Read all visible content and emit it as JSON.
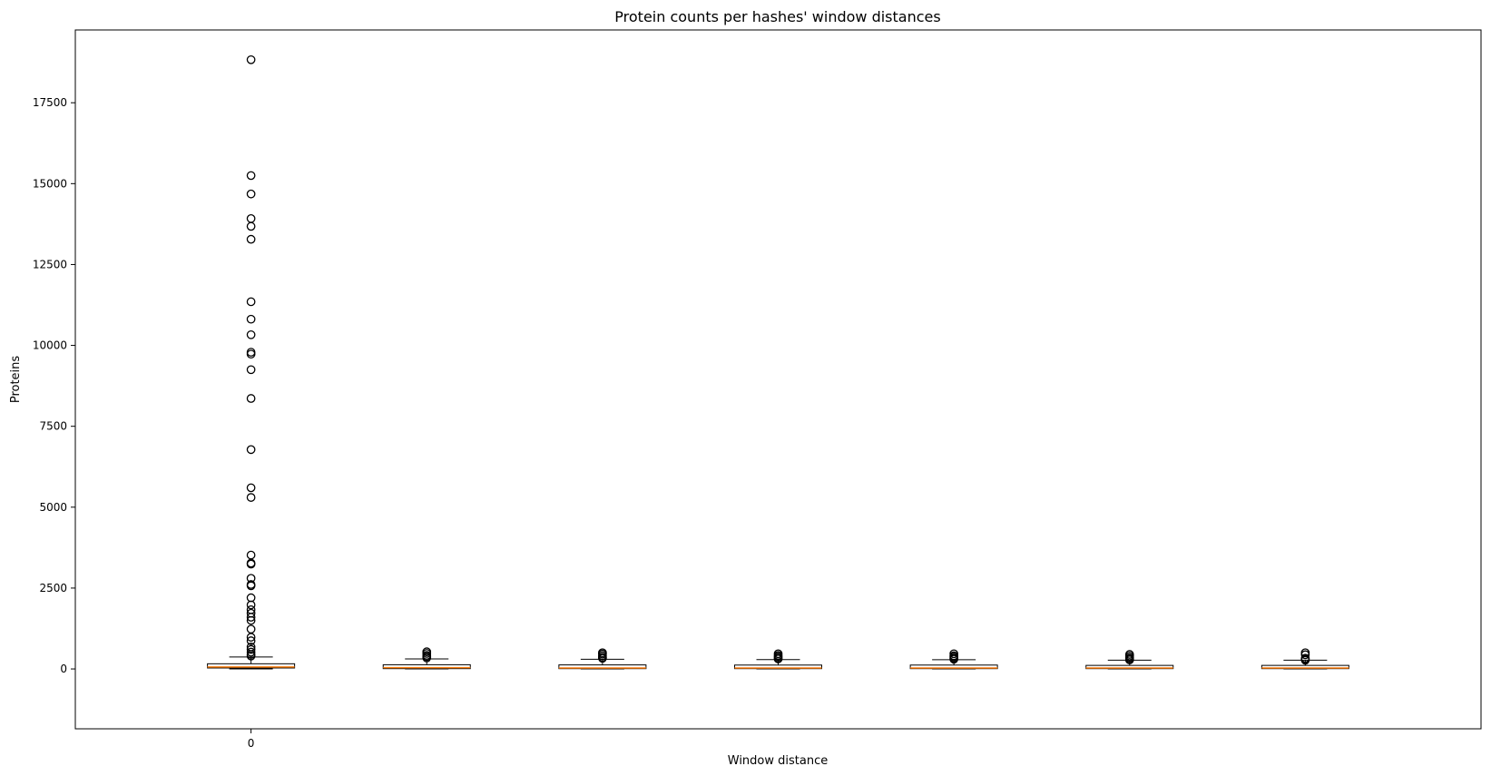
{
  "chart_data": {
    "type": "box",
    "title": "Protein counts per hashes' window distances",
    "xlabel": "Window distance",
    "ylabel": "Proteins",
    "ylim": [
      -1850,
      19750
    ],
    "xlim": [
      0,
      8
    ],
    "yticks": [
      0,
      2500,
      5000,
      7500,
      10000,
      12500,
      15000,
      17500
    ],
    "xticks": [
      {
        "position": 1,
        "label": "0"
      }
    ],
    "grid": false,
    "colors": {
      "box": "#000000",
      "median": "#ff7f0e",
      "whisker": "#000000",
      "flier": "#000000"
    },
    "boxes": [
      {
        "q1": 30,
        "median": 60,
        "q3": 160,
        "whislo": 0,
        "whishi": 370,
        "fliers": [
          18830,
          15250,
          14680,
          13920,
          13680,
          13280,
          11350,
          10810,
          10330,
          9790,
          9730,
          9250,
          8360,
          6780,
          5600,
          5300,
          3520,
          3270,
          3240,
          2800,
          2610,
          2570,
          2200,
          1980,
          1830,
          1720,
          1600,
          1500,
          1230,
          980,
          870,
          680,
          600,
          520,
          450,
          400
        ]
      },
      {
        "q1": 10,
        "median": 40,
        "q3": 130,
        "whislo": 0,
        "whishi": 310,
        "fliers": [
          530,
          480,
          420,
          380,
          340
        ]
      },
      {
        "q1": 10,
        "median": 30,
        "q3": 125,
        "whislo": 0,
        "whishi": 300,
        "fliers": [
          500,
          460,
          410,
          360,
          330
        ]
      },
      {
        "q1": 10,
        "median": 30,
        "q3": 120,
        "whislo": 0,
        "whishi": 290,
        "fliers": [
          470,
          420,
          380,
          340,
          310
        ]
      },
      {
        "q1": 10,
        "median": 30,
        "q3": 120,
        "whislo": 0,
        "whishi": 285,
        "fliers": [
          470,
          410,
          370,
          330,
          300
        ]
      },
      {
        "q1": 10,
        "median": 30,
        "q3": 110,
        "whislo": 0,
        "whishi": 270,
        "fliers": [
          450,
          400,
          350,
          310,
          280
        ]
      },
      {
        "q1": 10,
        "median": 30,
        "q3": 110,
        "whislo": 0,
        "whishi": 270,
        "fliers": [
          500,
          440,
          330,
          300,
          270
        ]
      }
    ]
  }
}
